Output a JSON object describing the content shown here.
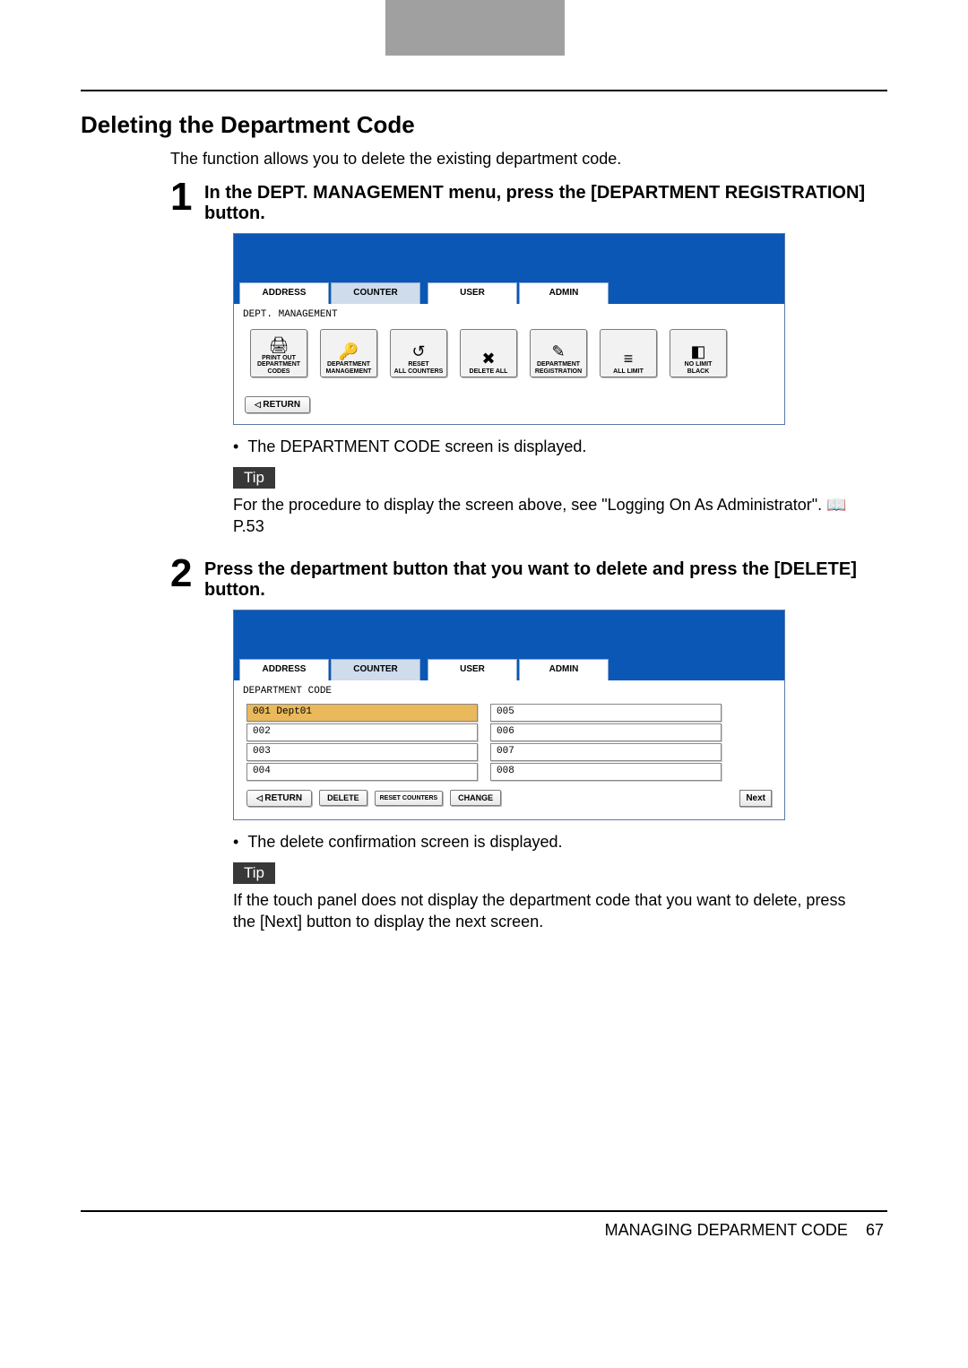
{
  "heading": "Deleting the Department Code",
  "intro": "The function allows you to delete the existing department code.",
  "step1": {
    "num": "1",
    "text": "In the DEPT. MANAGEMENT menu, press the [DEPARTMENT REGISTRATION] button."
  },
  "step2": {
    "num": "2",
    "text": "Press the department button that you want to delete and press the [DELETE] button."
  },
  "screen1": {
    "tabs": {
      "address": "ADDRESS",
      "counter": "COUNTER",
      "user": "USER",
      "admin": "ADMIN"
    },
    "breadcrumb": "DEPT. MANAGEMENT",
    "icons": [
      {
        "label": "PRINT OUT\nDEPARTMENT CODES",
        "glyph": "🖨"
      },
      {
        "label": "DEPARTMENT\nMANAGEMENT",
        "glyph": "🔑"
      },
      {
        "label": "RESET\nALL COUNTERS",
        "glyph": "↺"
      },
      {
        "label": "DELETE ALL",
        "glyph": "✖"
      },
      {
        "label": "DEPARTMENT\nREGISTRATION",
        "glyph": "✎"
      },
      {
        "label": "ALL LIMIT",
        "glyph": "≡"
      },
      {
        "label": "NO LIMIT\nBLACK",
        "glyph": "◧"
      }
    ],
    "return": "RETURN"
  },
  "bullet1": "The DEPARTMENT CODE screen is displayed.",
  "tip_label": "Tip",
  "tip1": "For the procedure to display the screen above, see \"Logging On As Administrator\".   📖  P.53",
  "screen2": {
    "tabs": {
      "address": "ADDRESS",
      "counter": "COUNTER",
      "user": "USER",
      "admin": "ADMIN"
    },
    "breadcrumb": "DEPARTMENT CODE",
    "left_rows": [
      "001 Dept01",
      "002",
      "003",
      "004"
    ],
    "right_rows": [
      "005",
      "006",
      "007",
      "008"
    ],
    "buttons": {
      "return": "RETURN",
      "delete": "DELETE",
      "reset": "RESET COUNTERS",
      "change": "CHANGE",
      "next": "Next"
    }
  },
  "bullet2": "The delete confirmation screen is displayed.",
  "tip2": "If the touch panel does not display the department code that you want to delete, press the [Next] button to display the next screen.",
  "footer": {
    "label": "MANAGING DEPARMENT CODE",
    "page": "67"
  }
}
